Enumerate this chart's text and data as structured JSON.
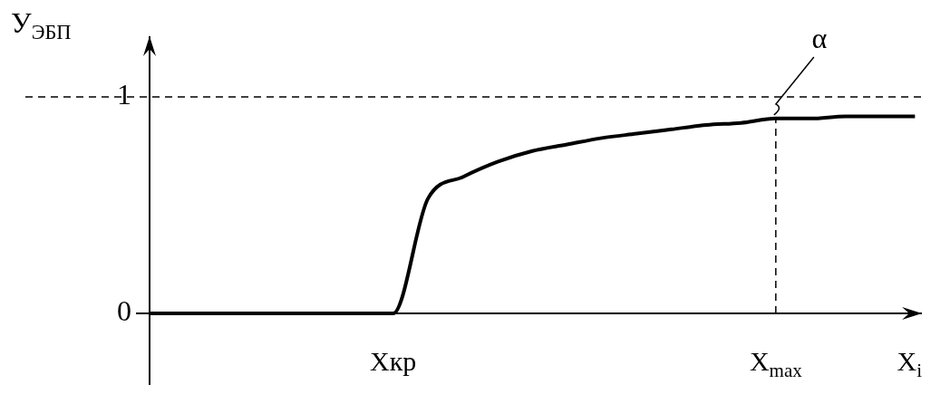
{
  "chart_data": {
    "type": "line",
    "xlabel": "X$_{i}$",
    "ylabel": "У$_{ЭБП}$",
    "categories": [
      null,
      null,
      null,
      null,
      null,
      null,
      null,
      "Xкр",
      null,
      null,
      null,
      null,
      null,
      null,
      null,
      null,
      null,
      null,
      "X$_{max}$",
      null,
      null,
      null,
      null
    ],
    "series": [
      {
        "color": "#000000",
        "values": [
          0,
          0,
          0,
          0,
          0,
          0,
          0,
          0,
          0.53,
          0.63,
          0.7,
          0.75,
          0.78,
          0.81,
          0.83,
          0.85,
          0.87,
          0.88,
          0.9,
          0.9,
          0.91,
          0.91,
          0.91
        ]
      }
    ],
    "ylim": [
      -0.33,
      1.28
    ],
    "yticks": [
      0,
      1
    ],
    "ref_lines": [
      {
        "axis": "y",
        "value": 1,
        "line_style": "dashed",
        "color": "#000000"
      },
      {
        "axis": "x",
        "value": "X$_{max}$",
        "line_style": "dashed",
        "color": "#000000"
      }
    ],
    "annotations": [
      {
        "text": "α",
        "x": "X$_{max}$",
        "y": 1
      }
    ],
    "marker": "none",
    "legend": false,
    "grid": false
  }
}
